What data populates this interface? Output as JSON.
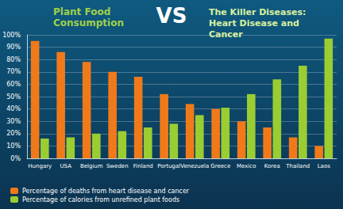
{
  "chart_data": {
    "type": "bar",
    "title": [
      "Plant Food Consumption",
      "VS",
      "The Killer Diseases: Heart Disease and Cancer"
    ],
    "categories": [
      "Hungary",
      "USA",
      "Belgium",
      "Sweden",
      "Finland",
      "Portugal",
      "Venezuela",
      "Greece",
      "Mexico",
      "Korea",
      "Thailand",
      "Laos"
    ],
    "series": [
      {
        "name": "Percentage of deaths from heart disease and cancer",
        "color": "#f07a1a",
        "values": [
          95,
          86,
          78,
          70,
          66,
          52,
          44,
          40,
          30,
          25,
          17,
          10
        ]
      },
      {
        "name": "Percentage of calories from unrefined plant foods",
        "color": "#9acd32",
        "values": [
          16,
          17,
          20,
          22,
          25,
          28,
          35,
          41,
          52,
          64,
          75,
          97
        ]
      }
    ],
    "ylim": [
      0,
      100
    ],
    "yticks": [
      {
        "value": 0,
        "label": "0%"
      },
      {
        "value": 10,
        "label": "10%"
      },
      {
        "value": 20,
        "label": "20%"
      },
      {
        "value": 30,
        "label": "30%"
      },
      {
        "value": 40,
        "label": "40%"
      },
      {
        "value": 50,
        "label": "50%"
      },
      {
        "value": 60,
        "label": "60%"
      },
      {
        "value": 70,
        "label": "70%"
      },
      {
        "value": 80,
        "label": "80%"
      },
      {
        "value": 90,
        "label": "90%"
      },
      {
        "value": 100,
        "label": "100%"
      }
    ],
    "grid": true,
    "legend": "bottom-left"
  }
}
